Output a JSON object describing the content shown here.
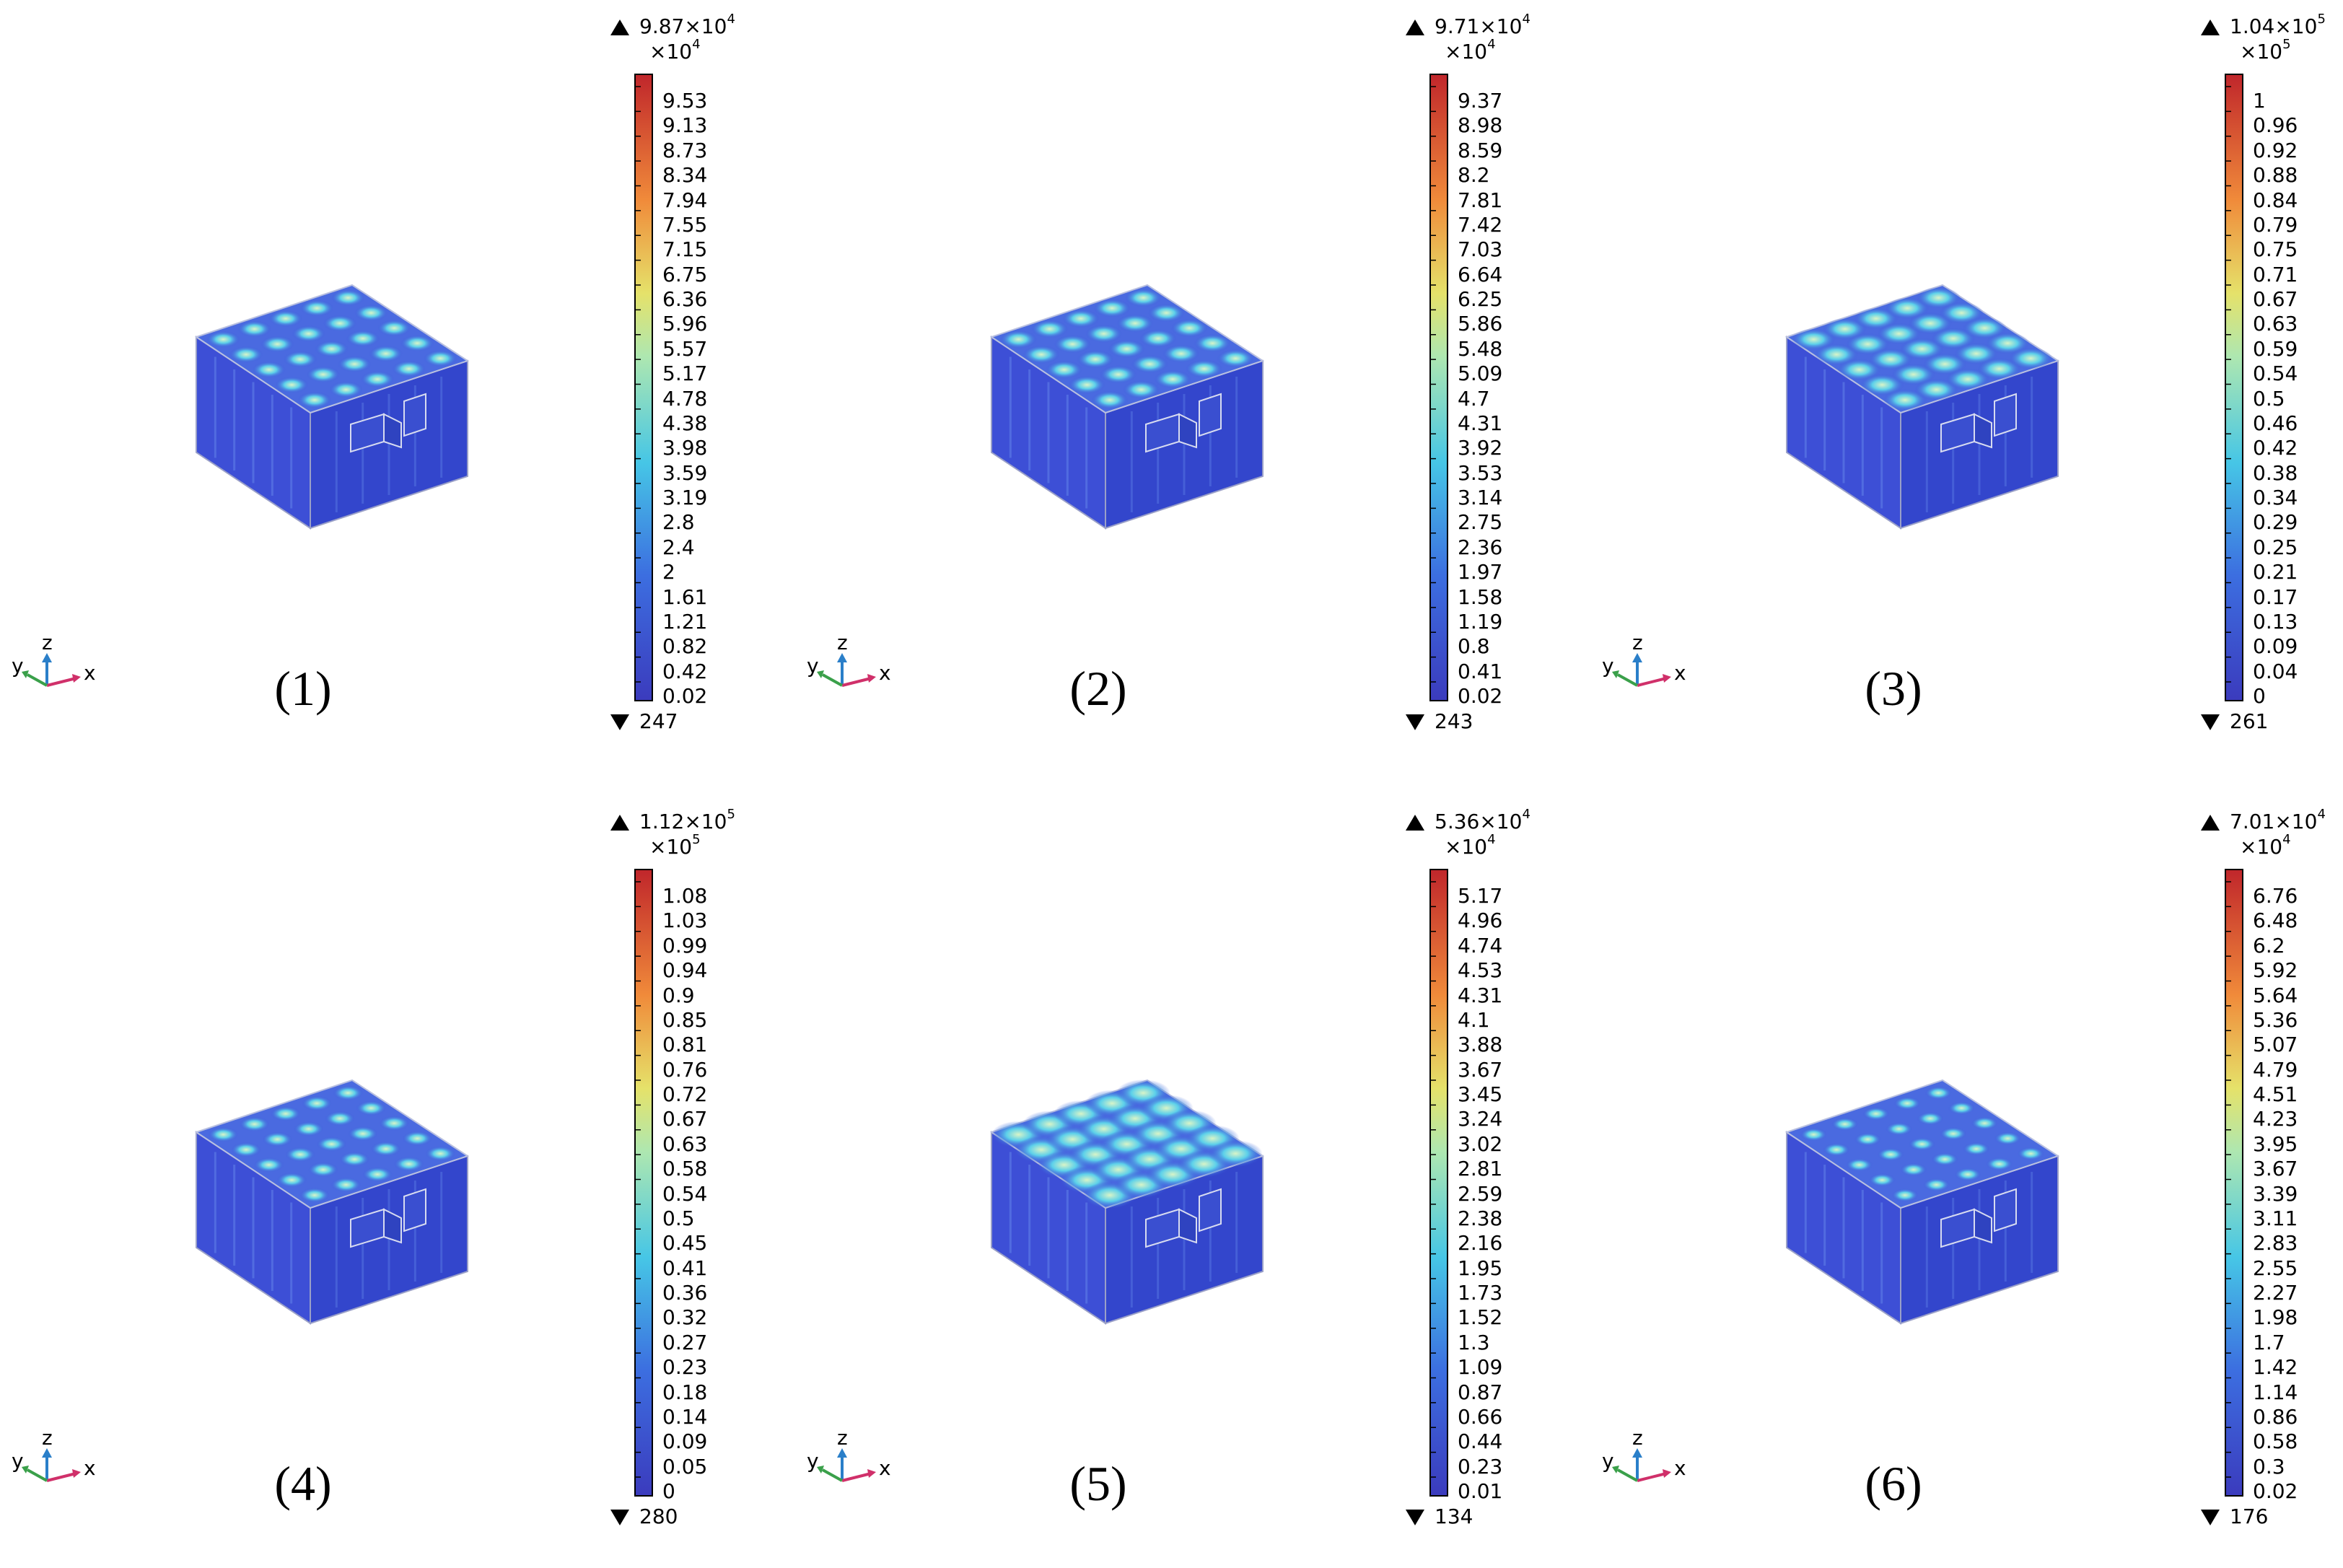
{
  "axis_triad": {
    "x": "x",
    "y": "y",
    "z": "z"
  },
  "panels": [
    {
      "label": "(1)",
      "max_text": "9.87×10",
      "max_exp": "4",
      "min_text": "247",
      "scale_base": "×10",
      "scale_exp": "4",
      "ticks": [
        "9.53",
        "9.13",
        "8.73",
        "8.34",
        "7.94",
        "7.55",
        "7.15",
        "6.75",
        "6.36",
        "5.96",
        "5.57",
        "5.17",
        "4.78",
        "4.38",
        "3.98",
        "3.59",
        "3.19",
        "2.8",
        "2.4",
        "2",
        "1.61",
        "1.21",
        "0.82",
        "0.42",
        "0.02"
      ]
    },
    {
      "label": "(2)",
      "max_text": "9.71×10",
      "max_exp": "4",
      "min_text": "243",
      "scale_base": "×10",
      "scale_exp": "4",
      "ticks": [
        "9.37",
        "8.98",
        "8.59",
        "8.2",
        "7.81",
        "7.42",
        "7.03",
        "6.64",
        "6.25",
        "5.86",
        "5.48",
        "5.09",
        "4.7",
        "4.31",
        "3.92",
        "3.53",
        "3.14",
        "2.75",
        "2.36",
        "1.97",
        "1.58",
        "1.19",
        "0.8",
        "0.41",
        "0.02"
      ]
    },
    {
      "label": "(3)",
      "max_text": "1.04×10",
      "max_exp": "5",
      "min_text": "261",
      "scale_base": "×10",
      "scale_exp": "5",
      "ticks": [
        "1",
        "0.96",
        "0.92",
        "0.88",
        "0.84",
        "0.79",
        "0.75",
        "0.71",
        "0.67",
        "0.63",
        "0.59",
        "0.54",
        "0.5",
        "0.46",
        "0.42",
        "0.38",
        "0.34",
        "0.29",
        "0.25",
        "0.21",
        "0.17",
        "0.13",
        "0.09",
        "0.04",
        "0"
      ]
    },
    {
      "label": "(4)",
      "max_text": "1.12×10",
      "max_exp": "5",
      "min_text": "280",
      "scale_base": "×10",
      "scale_exp": "5",
      "ticks": [
        "1.08",
        "1.03",
        "0.99",
        "0.94",
        "0.9",
        "0.85",
        "0.81",
        "0.76",
        "0.72",
        "0.67",
        "0.63",
        "0.58",
        "0.54",
        "0.5",
        "0.45",
        "0.41",
        "0.36",
        "0.32",
        "0.27",
        "0.23",
        "0.18",
        "0.14",
        "0.09",
        "0.05",
        "0"
      ]
    },
    {
      "label": "(5)",
      "max_text": "5.36×10",
      "max_exp": "4",
      "min_text": "134",
      "scale_base": "×10",
      "scale_exp": "4",
      "ticks": [
        "5.17",
        "4.96",
        "4.74",
        "4.53",
        "4.31",
        "4.1",
        "3.88",
        "3.67",
        "3.45",
        "3.24",
        "3.02",
        "2.81",
        "2.59",
        "2.38",
        "2.16",
        "1.95",
        "1.73",
        "1.52",
        "1.3",
        "1.09",
        "0.87",
        "0.66",
        "0.44",
        "0.23",
        "0.01"
      ]
    },
    {
      "label": "(6)",
      "max_text": "7.01×10",
      "max_exp": "4",
      "min_text": "176",
      "scale_base": "×10",
      "scale_exp": "4",
      "ticks": [
        "6.76",
        "6.48",
        "6.2",
        "5.92",
        "5.64",
        "5.36",
        "5.07",
        "4.79",
        "4.51",
        "4.23",
        "3.95",
        "3.67",
        "3.39",
        "3.11",
        "2.83",
        "2.55",
        "2.27",
        "1.98",
        "1.7",
        "1.42",
        "1.14",
        "0.86",
        "0.58",
        "0.3",
        "0.02"
      ]
    }
  ]
}
